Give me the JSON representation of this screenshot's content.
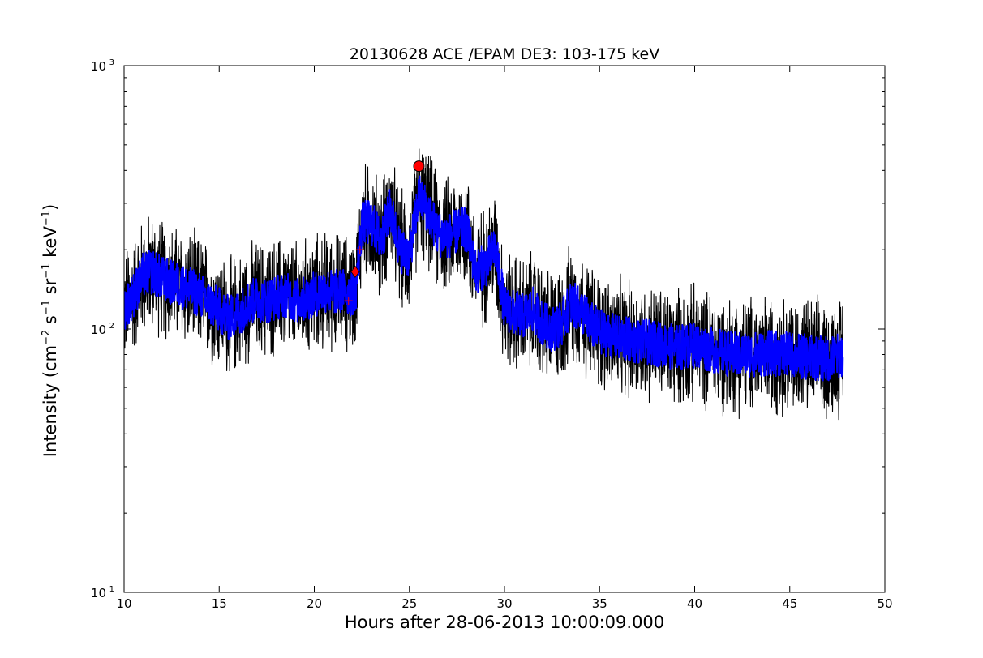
{
  "chart_data": {
    "type": "line",
    "title": "20130628 ACE /EPAM DE3: 103-175 keV",
    "xlabel": "Hours after 28-06-2013 10:00:09.000",
    "ylabel_parts": [
      "Intensity (cm",
      "−2",
      " s",
      "−1",
      " sr",
      "−1",
      " keV",
      "−1",
      ")"
    ],
    "xlim": [
      10,
      50
    ],
    "ylim": [
      10,
      1000
    ],
    "yscale": "log",
    "grid": false,
    "x_ticks": [
      10,
      15,
      20,
      25,
      30,
      35,
      40,
      45,
      50
    ],
    "x_tick_labels": [
      "10",
      "15",
      "20",
      "25",
      "30",
      "35",
      "40",
      "45",
      "50"
    ],
    "y_major_ticks": [
      10,
      100,
      1000
    ],
    "y_tick_labels": [
      {
        "base": "10",
        "exp": "1"
      },
      {
        "base": "10",
        "exp": "2"
      },
      {
        "base": "10",
        "exp": "3"
      }
    ],
    "series": [
      {
        "role": "raw-intensity",
        "color": "#000000",
        "x": [
          10.0,
          10.5,
          11.0,
          11.5,
          12.0,
          12.5,
          13.0,
          13.5,
          14.0,
          14.5,
          15.0,
          15.5,
          16.0,
          16.5,
          17.0,
          17.5,
          18.0,
          18.5,
          19.0,
          19.5,
          20.0,
          20.5,
          21.0,
          21.5,
          22.0,
          22.2,
          22.5,
          23.0,
          23.5,
          24.0,
          24.5,
          25.0,
          25.5,
          26.0,
          26.5,
          27.0,
          27.5,
          28.0,
          28.5,
          29.0,
          29.5,
          30.0,
          30.5,
          31.0,
          31.5,
          32.0,
          32.5,
          33.0,
          33.5,
          34.0,
          34.5,
          35.0,
          36.0,
          37.0,
          38.0,
          39.0,
          40.0,
          41.0,
          42.0,
          43.0,
          44.0,
          45.0,
          46.0,
          47.0,
          47.8
        ],
        "values": [
          120,
          135,
          160,
          165,
          155,
          150,
          145,
          140,
          135,
          125,
          118,
          110,
          115,
          125,
          130,
          128,
          132,
          135,
          128,
          130,
          135,
          140,
          138,
          140,
          135,
          145,
          250,
          255,
          215,
          285,
          200,
          190,
          320,
          280,
          230,
          225,
          235,
          240,
          165,
          175,
          205,
          120,
          115,
          112,
          118,
          105,
          100,
          105,
          125,
          118,
          105,
          98,
          92,
          90,
          88,
          85,
          87,
          83,
          80,
          80,
          81,
          80,
          78,
          77,
          80
        ]
      },
      {
        "role": "smoothed-intensity",
        "color": "#0000ff",
        "x": [
          10.0,
          10.5,
          11.0,
          11.5,
          12.0,
          12.5,
          13.0,
          13.5,
          14.0,
          14.5,
          15.0,
          15.5,
          16.0,
          16.5,
          17.0,
          17.5,
          18.0,
          18.5,
          19.0,
          19.5,
          20.0,
          20.5,
          21.0,
          21.5,
          22.0,
          22.2,
          22.5,
          23.0,
          23.5,
          24.0,
          24.5,
          25.0,
          25.5,
          26.0,
          26.5,
          27.0,
          27.5,
          28.0,
          28.5,
          29.0,
          29.5,
          30.0,
          30.5,
          31.0,
          31.5,
          32.0,
          32.5,
          33.0,
          33.5,
          34.0,
          34.5,
          35.0,
          36.0,
          37.0,
          38.0,
          39.0,
          40.0,
          41.0,
          42.0,
          43.0,
          44.0,
          45.0,
          46.0,
          47.0,
          47.8
        ],
        "values": [
          120,
          135,
          160,
          165,
          155,
          150,
          145,
          140,
          135,
          125,
          118,
          110,
          115,
          125,
          130,
          128,
          132,
          135,
          128,
          130,
          135,
          140,
          138,
          140,
          135,
          145,
          250,
          255,
          215,
          285,
          200,
          190,
          320,
          280,
          230,
          225,
          235,
          240,
          165,
          175,
          205,
          120,
          115,
          112,
          118,
          105,
          100,
          105,
          125,
          118,
          105,
          98,
          92,
          90,
          88,
          85,
          87,
          83,
          80,
          80,
          81,
          80,
          78,
          77,
          80
        ]
      }
    ],
    "markers": [
      {
        "shape": "circle",
        "x": 25.5,
        "y": 415,
        "color": "#ff0000"
      },
      {
        "shape": "diamond",
        "x": 22.15,
        "y": 165,
        "color": "#ff0000"
      },
      {
        "shape": "plus",
        "x": 21.8,
        "y": 128,
        "color": "#ff0000"
      },
      {
        "shape": "plus",
        "x": 22.4,
        "y": 200,
        "color": "#ff0000"
      }
    ]
  }
}
